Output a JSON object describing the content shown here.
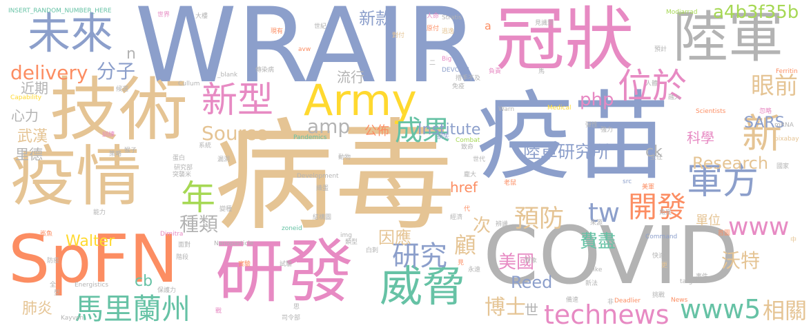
{
  "colors": {
    "blue": "#8c9fcb",
    "tan": "#e5c494",
    "pink": "#e78ac3",
    "gray": "#b3b3b3",
    "orange": "#fc8d62",
    "green": "#66c2a5",
    "yellow": "#ffd92f",
    "lime": "#a6d854"
  },
  "words": [
    {
      "text": "病毒",
      "color": "tan"
    },
    {
      "text": "WRAIR",
      "color": "blue"
    },
    {
      "text": "疫苗",
      "color": "blue"
    },
    {
      "text": "COVID",
      "color": "gray"
    },
    {
      "text": "冠狀",
      "color": "pink"
    },
    {
      "text": "技術",
      "color": "tan"
    },
    {
      "text": "疫情",
      "color": "tan"
    },
    {
      "text": "SpFN",
      "color": "orange"
    },
    {
      "text": "研發",
      "color": "pink"
    },
    {
      "text": "陸軍",
      "color": "gray"
    },
    {
      "text": "未來",
      "color": "blue"
    },
    {
      "text": "Army",
      "color": "yellow"
    },
    {
      "text": "威脅",
      "color": "green"
    },
    {
      "text": "新型",
      "color": "pink"
    },
    {
      "text": "位於",
      "color": "pink"
    },
    {
      "text": "新",
      "color": "tan"
    },
    {
      "text": "軍方",
      "color": "blue"
    },
    {
      "text": "馬里蘭州",
      "color": "green"
    },
    {
      "text": "年",
      "color": "lime"
    },
    {
      "text": "成果",
      "color": "green"
    },
    {
      "text": "technews",
      "color": "pink"
    },
    {
      "text": "www5",
      "color": "green"
    },
    {
      "text": "研究",
      "color": "blue"
    },
    {
      "text": "開發",
      "color": "orange"
    },
    {
      "text": "www",
      "color": "pink"
    },
    {
      "text": "Source",
      "color": "tan"
    },
    {
      "text": "delivery",
      "color": "orange"
    },
    {
      "text": "tw",
      "color": "blue"
    },
    {
      "text": "預防",
      "color": "tan"
    },
    {
      "text": "眼前",
      "color": "tan"
    },
    {
      "text": "博士",
      "color": "tan"
    },
    {
      "text": "相關",
      "color": "tan"
    },
    {
      "text": "新款",
      "color": "blue"
    },
    {
      "text": "a4b3f35b",
      "color": "lime"
    },
    {
      "text": "分子",
      "color": "blue"
    },
    {
      "text": "amp",
      "color": "gray"
    },
    {
      "text": "陸軍研究所",
      "color": "blue"
    },
    {
      "text": "php",
      "color": "pink"
    },
    {
      "text": "Institute",
      "color": "blue"
    },
    {
      "text": "Research",
      "color": "tan"
    },
    {
      "text": "種類",
      "color": "gray"
    },
    {
      "text": "因應",
      "color": "tan"
    },
    {
      "text": "顧",
      "color": "tan"
    },
    {
      "text": "次",
      "color": "tan"
    },
    {
      "text": "費盡",
      "color": "green"
    },
    {
      "text": "美國",
      "color": "pink"
    },
    {
      "text": "Reed",
      "color": "blue"
    },
    {
      "text": "Walter",
      "color": "yellow"
    },
    {
      "text": "沃特",
      "color": "tan"
    },
    {
      "text": "SARS",
      "color": "blue"
    },
    {
      "text": "ck",
      "color": "gray"
    },
    {
      "text": "流行",
      "color": "gray"
    },
    {
      "text": "近期",
      "color": "gray"
    },
    {
      "text": "心力",
      "color": "gray"
    },
    {
      "text": "武漢",
      "color": "tan"
    },
    {
      "text": "里德",
      "color": "gray"
    },
    {
      "text": "肺炎",
      "color": "tan"
    },
    {
      "text": "cb",
      "color": "green"
    },
    {
      "text": "href",
      "color": "orange"
    },
    {
      "text": "公佈",
      "color": "orange"
    },
    {
      "text": "科學",
      "color": "pink"
    },
    {
      "text": "單位",
      "color": "tan"
    },
    {
      "text": "世",
      "color": "gray"
    },
    {
      "text": "n",
      "color": "gray"
    },
    {
      "text": "a",
      "color": "orange"
    },
    {
      "text": "INSERT_RANDOM_NUMBER_HERE",
      "color": "green"
    },
    {
      "text": "Stratis",
      "color": "gray"
    },
    {
      "text": "世界",
      "color": "pink"
    },
    {
      "text": "大樓",
      "color": "gray"
    },
    {
      "text": "人命",
      "color": "pink"
    },
    {
      "text": "原付",
      "color": "orange"
    },
    {
      "text": "逃逸",
      "color": "tan"
    },
    {
      "text": "見識到",
      "color": "gray"
    },
    {
      "text": "Modjarrad",
      "color": "lime"
    },
    {
      "text": "預計",
      "color": "gray"
    },
    {
      "text": "Ferritin",
      "color": "orange"
    },
    {
      "text": "mRNA",
      "color": "gray"
    },
    {
      "text": "pixabay",
      "color": "tan"
    },
    {
      "text": "國家",
      "color": "gray"
    },
    {
      "text": "中",
      "color": "tan"
    },
    {
      "text": "Capability",
      "color": "yellow"
    },
    {
      "text": "Cullum",
      "color": "gray"
    },
    {
      "text": "_blank",
      "color": "gray"
    },
    {
      "text": "傳染病",
      "color": "gray"
    },
    {
      "text": "Pandemics",
      "color": "green"
    },
    {
      "text": "Development",
      "color": "gray"
    },
    {
      "text": "DEVCOM",
      "color": "blue"
    },
    {
      "text": "措手不及",
      "color": "gray"
    },
    {
      "text": "Big",
      "color": "pink"
    },
    {
      "text": "免疫",
      "color": "gray"
    },
    {
      "text": "Combat",
      "color": "lime"
    },
    {
      "text": "Medical",
      "color": "yellow"
    },
    {
      "text": "Warn",
      "color": "gray"
    },
    {
      "text": "Scientists",
      "color": "orange"
    },
    {
      "text": "Nanoparticle",
      "color": "gray"
    },
    {
      "text": "Dimitra",
      "color": "pink"
    },
    {
      "text": "Energistics",
      "color": "gray"
    },
    {
      "text": "Kayvon",
      "color": "gray"
    },
    {
      "text": "zoneid",
      "color": "green"
    },
    {
      "text": "img",
      "color": "gray"
    },
    {
      "text": "Spike",
      "color": "gray"
    },
    {
      "text": "Command",
      "color": "blue"
    },
    {
      "text": "Deadlier",
      "color": "orange"
    },
    {
      "text": "News",
      "color": "orange"
    },
    {
      "text": "target",
      "color": "gray"
    },
    {
      "text": "src",
      "color": "blue"
    },
    {
      "text": "avw",
      "color": "orange"
    },
    {
      "text": "二",
      "color": "gray"
    },
    {
      "text": "世紀",
      "color": "gray"
    },
    {
      "text": "對付",
      "color": "tan"
    },
    {
      "text": "現有",
      "color": "orange"
    },
    {
      "text": "負責",
      "color": "pink"
    },
    {
      "text": "馬",
      "color": "gray"
    },
    {
      "text": "人體",
      "color": "gray"
    },
    {
      "text": "融入",
      "color": "gray"
    },
    {
      "text": "忽略",
      "color": "pink"
    },
    {
      "text": "彈性",
      "color": "gray"
    },
    {
      "text": "強力",
      "color": "gray"
    },
    {
      "text": "主任",
      "color": "gray"
    },
    {
      "text": "美軍",
      "color": "orange"
    },
    {
      "text": "老鼠",
      "color": "orange"
    },
    {
      "text": "角度",
      "color": "gray"
    },
    {
      "text": "來源",
      "color": "gray"
    },
    {
      "text": "首圖",
      "color": "orange"
    },
    {
      "text": "快速",
      "color": "gray"
    },
    {
      "text": "更",
      "color": "tan"
    },
    {
      "text": "新法",
      "color": "gray"
    },
    {
      "text": "事件",
      "color": "gray"
    },
    {
      "text": "挑戰",
      "color": "gray"
    },
    {
      "text": "非",
      "color": "gray"
    },
    {
      "text": "備速",
      "color": "gray"
    },
    {
      "text": "對象",
      "color": "gray"
    },
    {
      "text": "永遠",
      "color": "gray"
    },
    {
      "text": "見",
      "color": "orange"
    },
    {
      "text": "白刺",
      "color": "gray"
    },
    {
      "text": "類型",
      "color": "gray"
    },
    {
      "text": "經濟",
      "color": "gray"
    },
    {
      "text": "辨識",
      "color": "gray"
    },
    {
      "text": "代",
      "color": "orange"
    },
    {
      "text": "結構圖",
      "color": "gray"
    },
    {
      "text": "織蛋",
      "color": "gray"
    },
    {
      "text": "龐大",
      "color": "gray"
    },
    {
      "text": "世代",
      "color": "gray"
    },
    {
      "text": "致命",
      "color": "gray"
    },
    {
      "text": "動物",
      "color": "gray"
    },
    {
      "text": "損失",
      "color": "blue"
    },
    {
      "text": "實驗",
      "color": "orange"
    },
    {
      "text": "試驗",
      "color": "gray"
    },
    {
      "text": "思",
      "color": "gray"
    },
    {
      "text": "司令部",
      "color": "gray"
    },
    {
      "text": "戰",
      "color": "pink"
    },
    {
      "text": "階段",
      "color": "gray"
    },
    {
      "text": "保護力",
      "color": "gray"
    },
    {
      "text": "型",
      "color": "gray"
    },
    {
      "text": "全",
      "color": "gray"
    },
    {
      "text": "防疫",
      "color": "gray"
    },
    {
      "text": "鯊魚",
      "color": "orange"
    },
    {
      "text": "面對",
      "color": "gray"
    },
    {
      "text": "能力",
      "color": "gray"
    },
    {
      "text": "變種",
      "color": "gray"
    },
    {
      "text": "研究部",
      "color": "gray"
    },
    {
      "text": "突襲米",
      "color": "gray"
    },
    {
      "text": "蛋白",
      "color": "gray"
    },
    {
      "text": "漏洞",
      "color": "gray"
    },
    {
      "text": "猴子",
      "color": "gray"
    },
    {
      "text": "系統",
      "color": "gray"
    },
    {
      "text": "策略",
      "color": "gray"
    },
    {
      "text": "訓練",
      "color": "pink"
    },
    {
      "text": "候選",
      "color": "gray"
    }
  ]
}
